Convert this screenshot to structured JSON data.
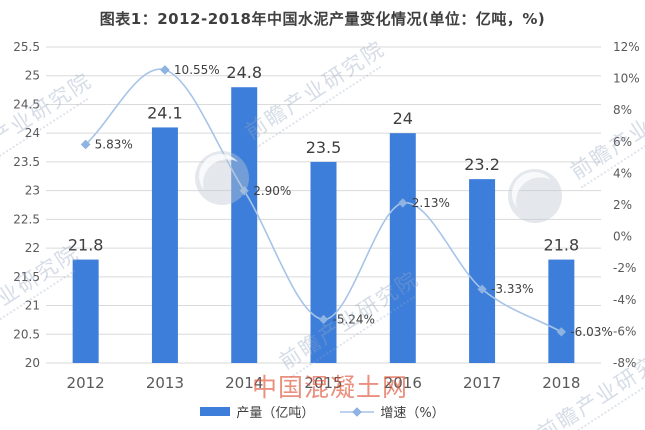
{
  "title": "图表1：2012-2018年中国水泥产量变化情况(单位：亿吨，%)",
  "chart_data": {
    "type": "bar+line",
    "categories": [
      "2012",
      "2013",
      "2014",
      "2015",
      "2016",
      "2017",
      "2018"
    ],
    "series": [
      {
        "name": "产量（亿吨）",
        "type": "bar",
        "axis": "left",
        "values": [
          21.8,
          24.1,
          24.8,
          23.5,
          24,
          23.2,
          21.8
        ],
        "labels": [
          "21.8",
          "24.1",
          "24.8",
          "23.5",
          "24",
          "23.2",
          "21.8"
        ],
        "color": "#3D7EDB"
      },
      {
        "name": "增速（%）",
        "type": "line",
        "axis": "right",
        "values": [
          5.83,
          10.55,
          2.9,
          -5.24,
          2.13,
          -3.33,
          -6.03
        ],
        "labels": [
          "5.83%",
          "10.55%",
          "2.90%",
          "-5.24%",
          "2.13%",
          "-3.33%",
          "-6.03%"
        ],
        "color": "#A7C4E8",
        "marker_color": "#8FB4E3"
      }
    ],
    "left_axis": {
      "min": 20,
      "max": 25.5,
      "step": 0.5,
      "tick_labels": [
        "25.5",
        "25",
        "24.5",
        "24",
        "23.5",
        "23",
        "22.5",
        "22",
        "21.5",
        "21",
        "20.5",
        "20"
      ]
    },
    "right_axis": {
      "min": -8,
      "max": 12,
      "step": 2,
      "tick_labels": [
        "12%",
        "10%",
        "8%",
        "6%",
        "4%",
        "2%",
        "0%",
        "-2%",
        "-4%",
        "-6%",
        "-8%"
      ]
    },
    "grid": true,
    "grid_color": "#DADADA",
    "axis_text_color": "#595959",
    "label_text_color": "#3F3F3F",
    "legend_position": "bottom"
  },
  "legend": {
    "bar_label": "产量（亿吨）",
    "line_label": "增速（%）"
  },
  "watermarks": {
    "diagonal_text": "前瞻产业研究院",
    "center_red_text": "中国混凝土网",
    "red_color": "#DB4628",
    "diagonal_color": "#94A6C0"
  }
}
